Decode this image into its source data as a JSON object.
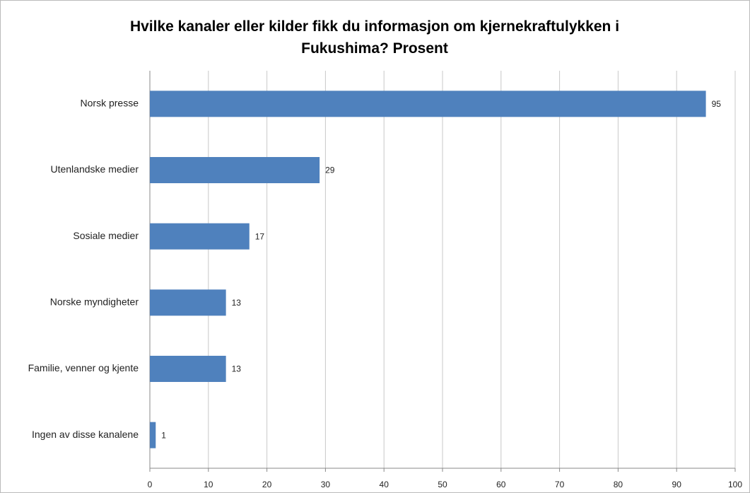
{
  "chart_data": {
    "type": "bar",
    "orientation": "horizontal",
    "title": "Hvilke kanaler eller kilder fikk du informasjon om kjernekraftulykken i Fukushima? Prosent",
    "categories": [
      "Norsk presse",
      "Utenlandske medier",
      "Sosiale medier",
      "Norske myndigheter",
      "Familie, venner og kjente",
      "Ingen av disse kanalene"
    ],
    "values": [
      95,
      29,
      17,
      13,
      13,
      1
    ],
    "color": "#4f81bd",
    "xlim": [
      0,
      100
    ],
    "xticks": [
      0,
      10,
      20,
      30,
      40,
      50,
      60,
      70,
      80,
      90,
      100
    ],
    "grid": true
  }
}
